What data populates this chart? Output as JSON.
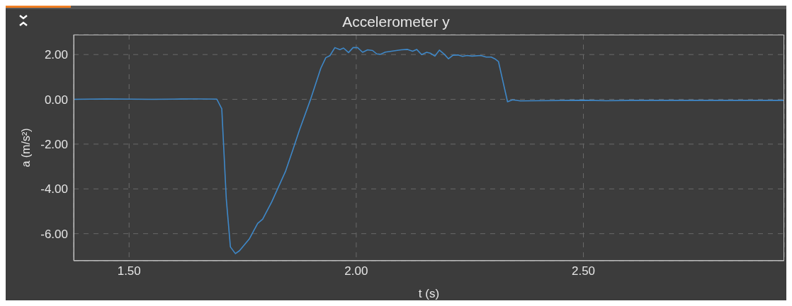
{
  "chart_data": {
    "type": "line",
    "title": "Accelerometer y",
    "xlabel": "t (s)",
    "ylabel": "a (m/s²)",
    "xlim": [
      1.378,
      2.942
    ],
    "ylim": [
      -7.21,
      2.89
    ],
    "xticks": [
      {
        "value": 1.5,
        "label": "1.50"
      },
      {
        "value": 2,
        "label": "2.00"
      },
      {
        "value": 2.5,
        "label": "2.50"
      }
    ],
    "yticks": [
      {
        "value": -6,
        "label": "-6.00"
      },
      {
        "value": -4,
        "label": "-4.00"
      },
      {
        "value": -2,
        "label": "-2.00"
      },
      {
        "value": 0,
        "label": "0.00"
      },
      {
        "value": 2,
        "label": "2.00"
      }
    ],
    "grid": true,
    "marker": "none",
    "line_style": "solid",
    "series": [
      {
        "color": "#3f88c8",
        "x": [
          1.378,
          1.45,
          1.5,
          1.55,
          1.6,
          1.65,
          1.693,
          1.704,
          1.714,
          1.723,
          1.734,
          1.743,
          1.765,
          1.783,
          1.794,
          1.814,
          1.844,
          1.861,
          1.875,
          1.9,
          1.922,
          1.933,
          1.942,
          1.953,
          1.964,
          1.972,
          1.983,
          1.993,
          2.003,
          2.014,
          2.025,
          2.036,
          2.045,
          2.053,
          2.064,
          2.088,
          2.099,
          2.113,
          2.124,
          2.133,
          2.144,
          2.155,
          2.163,
          2.173,
          2.183,
          2.194,
          2.203,
          2.213,
          2.224,
          2.234,
          2.244,
          2.255,
          2.274,
          2.286,
          2.297,
          2.305,
          2.313,
          2.333,
          2.344,
          2.361,
          2.4,
          2.5,
          2.55,
          2.6,
          2.7,
          2.8,
          2.942
        ],
        "values": [
          0.0,
          0.02,
          0.01,
          0.0,
          0.01,
          0.02,
          0.01,
          -0.42,
          -4.47,
          -6.59,
          -6.89,
          -6.76,
          -6.22,
          -5.54,
          -5.35,
          -4.58,
          -3.23,
          -2.22,
          -1.37,
          0.03,
          1.39,
          1.86,
          1.95,
          2.31,
          2.22,
          2.29,
          2.09,
          2.31,
          2.31,
          2.1,
          2.21,
          2.18,
          2.03,
          2.01,
          2.11,
          2.18,
          2.21,
          2.23,
          2.15,
          2.23,
          2.0,
          2.1,
          2.06,
          1.93,
          2.2,
          2.01,
          1.81,
          1.97,
          1.98,
          1.92,
          1.96,
          1.93,
          1.96,
          1.89,
          1.89,
          1.81,
          1.69,
          -0.11,
          -0.02,
          -0.07,
          -0.06,
          -0.04,
          -0.06,
          -0.05,
          -0.05,
          -0.05,
          -0.05
        ]
      }
    ]
  }
}
